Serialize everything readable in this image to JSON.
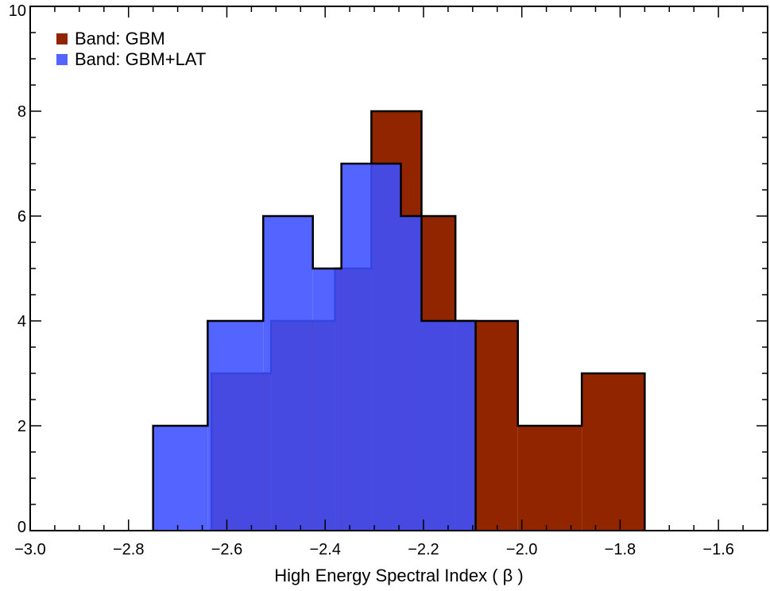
{
  "chart_data": {
    "type": "histogram",
    "xlabel": "High Energy Spectral Index ( β )",
    "ylabel": "",
    "xlim": [
      -3.0,
      -1.5
    ],
    "ylim": [
      0,
      10
    ],
    "xticks": [
      -3.0,
      -2.8,
      -2.6,
      -2.4,
      -2.2,
      -2.0,
      -1.8,
      -1.6
    ],
    "xtick_labels": [
      "−3.0",
      "−2.8",
      "−2.6",
      "−2.4",
      "−2.2",
      "−2.0",
      "−1.8",
      "−1.6"
    ],
    "yticks": [
      0,
      2,
      4,
      6,
      8,
      10
    ],
    "ytick_labels": [
      "0",
      "2",
      "4",
      "6",
      "8",
      "10"
    ],
    "x_minor_step": 0.05,
    "y_minor_step": 0.5,
    "legend_position": "top-left",
    "series": [
      {
        "name": "Band: GBM",
        "color": "#912500",
        "opacity": 1,
        "edges": [
          -2.631,
          -2.51,
          -2.38,
          -2.306,
          -2.204,
          -2.135,
          -2.094,
          -2.008,
          -1.878,
          -1.75
        ],
        "counts": [
          3,
          4,
          5,
          8,
          6,
          4,
          4,
          2,
          3
        ]
      },
      {
        "name": "Band: GBM+LAT",
        "color": "#3c50ff",
        "opacity": 0.88,
        "edges": [
          -2.75,
          -2.639,
          -2.526,
          -2.425,
          -2.367,
          -2.246,
          -2.204,
          -2.094
        ],
        "counts": [
          2,
          4,
          6,
          5,
          7,
          6,
          4
        ]
      }
    ]
  }
}
